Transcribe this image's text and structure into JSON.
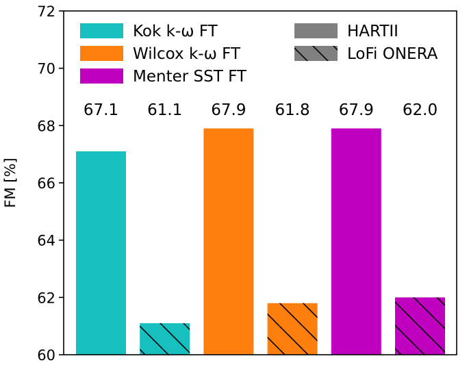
{
  "chart_data": {
    "type": "bar",
    "ylabel": "FM [%]",
    "ylim": [
      60,
      72
    ],
    "yticks": [
      60,
      62,
      64,
      66,
      68,
      70,
      72
    ],
    "grid": false,
    "legend_position": "top",
    "bars": [
      {
        "group": "Kok k-ω FT",
        "set": "HARTII",
        "value": 67.1,
        "label": "67.1",
        "color": "#17BFBF",
        "hatch": false
      },
      {
        "group": "Kok k-ω FT",
        "set": "LoFi ONERA",
        "value": 61.1,
        "label": "61.1",
        "color": "#17BFBF",
        "hatch": true
      },
      {
        "group": "Wilcox k-ω FT",
        "set": "HARTII",
        "value": 67.9,
        "label": "67.9",
        "color": "#FF7F0E",
        "hatch": false
      },
      {
        "group": "Wilcox k-ω FT",
        "set": "LoFi ONERA",
        "value": 61.8,
        "label": "61.8",
        "color": "#FF7F0E",
        "hatch": true
      },
      {
        "group": "Menter SST FT",
        "set": "HARTII",
        "value": 67.9,
        "label": "67.9",
        "color": "#BF00BF",
        "hatch": false
      },
      {
        "group": "Menter SST FT",
        "set": "LoFi ONERA",
        "value": 62.0,
        "label": "62.0",
        "color": "#BF00BF",
        "hatch": true
      }
    ],
    "legend": {
      "left": [
        {
          "label": "Kok k-ω FT",
          "color": "#17BFBF"
        },
        {
          "label": "Wilcox k-ω FT",
          "color": "#FF7F0E"
        },
        {
          "label": "Menter SST FT",
          "color": "#BF00BF"
        }
      ],
      "right": [
        {
          "label": "HARTII",
          "color": "#808080",
          "hatch": false
        },
        {
          "label": "LoFi ONERA",
          "color": "#808080",
          "hatch": true
        }
      ]
    }
  }
}
